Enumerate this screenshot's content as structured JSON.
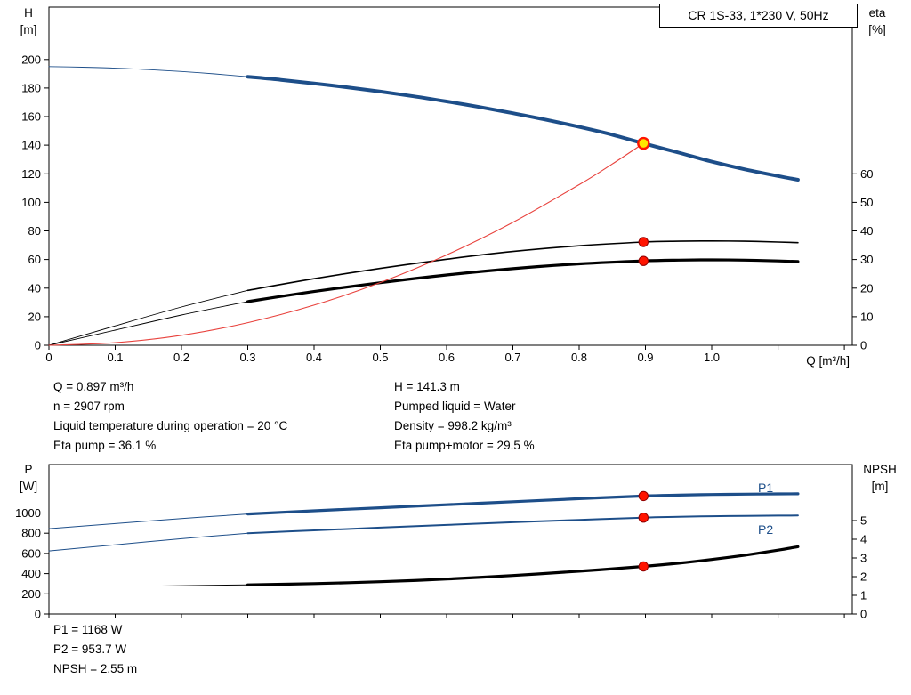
{
  "title_box": "CR 1S-33, 1*230 V, 50Hz",
  "labels": {
    "h_axis": [
      "H",
      "[m]"
    ],
    "eta_axis": [
      "eta",
      "[%]"
    ],
    "q_axis": "Q [m³/h]",
    "p_axis": [
      "P",
      "[W]"
    ],
    "npsh_axis": [
      "NPSH",
      "[m]"
    ],
    "p1": "P1",
    "p2": "P2"
  },
  "info_top_left": [
    "Q = 0.897 m³/h",
    "n = 2907 rpm",
    "Liquid temperature during operation = 20 °C",
    "Eta pump = 36.1 %"
  ],
  "info_top_right": [
    "H = 141.3 m",
    "Pumped liquid = Water",
    "Density = 998.2 kg/m³",
    "Eta pump+motor = 29.5 %"
  ],
  "info_bottom": [
    "P1 = 1168 W",
    "P2 = 953.7 W",
    "NPSH = 2.55 m"
  ],
  "colors": {
    "curve_blue": "#1d4e89",
    "system_red": "#e8413c",
    "marker_red": "#ff1400",
    "duty_yellow": "#ffe400",
    "black": "#000000"
  },
  "chart_data": [
    {
      "name": "head-efficiency-chart",
      "type": "line",
      "title": "CR 1S-33, 1*230 V, 50Hz",
      "xlabel": "Q [m³/h]",
      "ylabel_left": "H [m]",
      "ylabel_right": "eta [%]",
      "xlim": [
        0,
        1.212
      ],
      "ylim_left": [
        0,
        236.6
      ],
      "ylim_right": [
        0,
        118.3
      ],
      "x_ticks": [
        0,
        0.1,
        0.2,
        0.3,
        0.4,
        0.5,
        0.6,
        0.7,
        0.8,
        0.9,
        1.0,
        1.1,
        1.2
      ],
      "x_tick_labels": [
        "0",
        "0.1",
        "0.2",
        "0.3",
        "0.4",
        "0.5",
        "0.6",
        "0.7",
        "0.8",
        "0.9",
        "1.0"
      ],
      "y_ticks_left": [
        0,
        20,
        40,
        60,
        80,
        100,
        120,
        140,
        160,
        180,
        200
      ],
      "y_ticks_right": [
        0,
        10,
        20,
        30,
        40,
        50,
        60
      ],
      "grid": false,
      "series": [
        {
          "name": "h-lead",
          "axis": "left",
          "color": "#1d4e89",
          "width": 0.9,
          "points": [
            [
              0,
              195
            ],
            [
              0.05,
              194.6
            ],
            [
              0.1,
              193.9
            ],
            [
              0.15,
              192.9
            ],
            [
              0.2,
              191.6
            ],
            [
              0.25,
              189.9
            ],
            [
              0.3,
              187.9
            ]
          ]
        },
        {
          "name": "h-curve",
          "axis": "left",
          "color": "#1d4e89",
          "width": 4,
          "points": [
            [
              0.3,
              187.9
            ],
            [
              0.35,
              185.7
            ],
            [
              0.4,
              183.2
            ],
            [
              0.45,
              180.5
            ],
            [
              0.5,
              177.5
            ],
            [
              0.55,
              174.2
            ],
            [
              0.6,
              170.6
            ],
            [
              0.65,
              166.7
            ],
            [
              0.7,
              162.4
            ],
            [
              0.75,
              157.8
            ],
            [
              0.8,
              152.8
            ],
            [
              0.85,
              147.3
            ],
            [
              0.897,
              141.3
            ],
            [
              0.95,
              134.8
            ],
            [
              1.0,
              128.5
            ],
            [
              1.05,
              123.1
            ],
            [
              1.1,
              118.4
            ],
            [
              1.13,
              115.8
            ]
          ]
        },
        {
          "name": "eta-pump-lead",
          "axis": "right",
          "color": "#000000",
          "width": 0.9,
          "points": [
            [
              0,
              0
            ],
            [
              0.1,
              6.8
            ],
            [
              0.2,
              13.4
            ],
            [
              0.3,
              19.2
            ]
          ]
        },
        {
          "name": "eta-pump-motor-lead",
          "axis": "right",
          "color": "#000000",
          "width": 0.9,
          "points": [
            [
              0,
              0
            ],
            [
              0.1,
              5.3
            ],
            [
              0.2,
              10.6
            ],
            [
              0.3,
              15.3
            ]
          ]
        },
        {
          "name": "eta-pump-curve",
          "axis": "right",
          "color": "#000000",
          "width": 1.6,
          "points": [
            [
              0.3,
              19.2
            ],
            [
              0.4,
              23.3
            ],
            [
              0.5,
              26.9
            ],
            [
              0.6,
              30.1
            ],
            [
              0.7,
              32.8
            ],
            [
              0.8,
              34.8
            ],
            [
              0.897,
              36.1
            ],
            [
              0.95,
              36.4
            ],
            [
              1.0,
              36.5
            ],
            [
              1.05,
              36.4
            ],
            [
              1.1,
              36.1
            ],
            [
              1.13,
              35.9
            ]
          ]
        },
        {
          "name": "eta-pump-motor-curve",
          "axis": "right",
          "color": "#000000",
          "width": 3.2,
          "points": [
            [
              0.3,
              15.3
            ],
            [
              0.4,
              18.8
            ],
            [
              0.5,
              21.9
            ],
            [
              0.6,
              24.6
            ],
            [
              0.7,
              26.8
            ],
            [
              0.8,
              28.5
            ],
            [
              0.897,
              29.5
            ],
            [
              0.95,
              29.8
            ],
            [
              1.0,
              29.9
            ],
            [
              1.05,
              29.8
            ],
            [
              1.1,
              29.5
            ],
            [
              1.13,
              29.3
            ]
          ]
        },
        {
          "name": "system-curve",
          "axis": "left",
          "color": "#e8413c",
          "width": 1.1,
          "points": [
            [
              0,
              0
            ],
            [
              0.1,
              1.8
            ],
            [
              0.2,
              7.0
            ],
            [
              0.3,
              15.8
            ],
            [
              0.4,
              28.1
            ],
            [
              0.5,
              43.9
            ],
            [
              0.6,
              63.2
            ],
            [
              0.7,
              86.0
            ],
            [
              0.8,
              112.4
            ],
            [
              0.85,
              126.9
            ],
            [
              0.897,
              141.3
            ]
          ]
        }
      ],
      "markers": [
        {
          "name": "eta-pump-point",
          "x": 0.897,
          "y": 36.1,
          "axis": "right",
          "style": "point"
        },
        {
          "name": "eta-pump-motor-point",
          "x": 0.897,
          "y": 29.5,
          "axis": "right",
          "style": "point"
        },
        {
          "name": "duty-point",
          "x": 0.897,
          "y": 141.3,
          "axis": "left",
          "style": "duty"
        }
      ]
    },
    {
      "name": "power-npsh-chart",
      "type": "line",
      "title": "",
      "xlabel": "",
      "ylabel_left": "P [W]",
      "ylabel_right": "NPSH [m]",
      "xlim": [
        0,
        1.212
      ],
      "ylim_left": [
        0,
        1480
      ],
      "ylim_right": [
        0,
        8
      ],
      "x_ticks": [
        0,
        0.1,
        0.2,
        0.3,
        0.4,
        0.5,
        0.6,
        0.7,
        0.8,
        0.9,
        1.0,
        1.1,
        1.2
      ],
      "x_tick_labels": [],
      "y_ticks_left": [
        0,
        200,
        400,
        600,
        800,
        1000
      ],
      "y_ticks_right": [
        0,
        1,
        2,
        3,
        4,
        5
      ],
      "grid": false,
      "series": [
        {
          "name": "p1-lead",
          "axis": "left",
          "color": "#1d4e89",
          "width": 1,
          "points": [
            [
              0,
              845
            ],
            [
              0.1,
              895
            ],
            [
              0.2,
              945
            ],
            [
              0.3,
              990
            ]
          ]
        },
        {
          "name": "p1-curve",
          "axis": "left",
          "color": "#1d4e89",
          "width": 3.2,
          "points": [
            [
              0.3,
              990
            ],
            [
              0.4,
              1022
            ],
            [
              0.5,
              1052
            ],
            [
              0.6,
              1082
            ],
            [
              0.7,
              1112
            ],
            [
              0.8,
              1142
            ],
            [
              0.897,
              1168
            ],
            [
              0.95,
              1177
            ],
            [
              1.0,
              1183
            ],
            [
              1.05,
              1187
            ],
            [
              1.1,
              1189
            ],
            [
              1.13,
              1190
            ]
          ]
        },
        {
          "name": "p2-lead",
          "axis": "left",
          "color": "#1d4e89",
          "width": 1,
          "points": [
            [
              0,
              625
            ],
            [
              0.1,
              685
            ],
            [
              0.2,
              745
            ],
            [
              0.3,
              800
            ]
          ]
        },
        {
          "name": "p2-curve",
          "axis": "left",
          "color": "#1d4e89",
          "width": 2,
          "points": [
            [
              0.3,
              800
            ],
            [
              0.4,
              828
            ],
            [
              0.5,
              855
            ],
            [
              0.6,
              882
            ],
            [
              0.7,
              908
            ],
            [
              0.8,
              932
            ],
            [
              0.897,
              953.7
            ],
            [
              0.95,
              962
            ],
            [
              1.0,
              968
            ],
            [
              1.05,
              972
            ],
            [
              1.1,
              974
            ],
            [
              1.13,
              975
            ]
          ]
        },
        {
          "name": "npsh-lead",
          "axis": "right",
          "color": "#000000",
          "width": 1,
          "points": [
            [
              0.17,
              1.5
            ],
            [
              0.3,
              1.56
            ]
          ]
        },
        {
          "name": "npsh-curve",
          "axis": "right",
          "color": "#000000",
          "width": 3.2,
          "points": [
            [
              0.3,
              1.56
            ],
            [
              0.4,
              1.63
            ],
            [
              0.5,
              1.73
            ],
            [
              0.6,
              1.87
            ],
            [
              0.7,
              2.06
            ],
            [
              0.8,
              2.29
            ],
            [
              0.897,
              2.55
            ],
            [
              0.95,
              2.72
            ],
            [
              1.0,
              2.92
            ],
            [
              1.05,
              3.15
            ],
            [
              1.1,
              3.42
            ],
            [
              1.13,
              3.6
            ]
          ]
        }
      ],
      "markers": [
        {
          "name": "p1-point",
          "x": 0.897,
          "y": 1168,
          "axis": "left",
          "style": "point"
        },
        {
          "name": "p2-point",
          "x": 0.897,
          "y": 953.7,
          "axis": "left",
          "style": "point"
        },
        {
          "name": "npsh-point",
          "x": 0.897,
          "y": 2.55,
          "axis": "right",
          "style": "point"
        }
      ]
    }
  ]
}
